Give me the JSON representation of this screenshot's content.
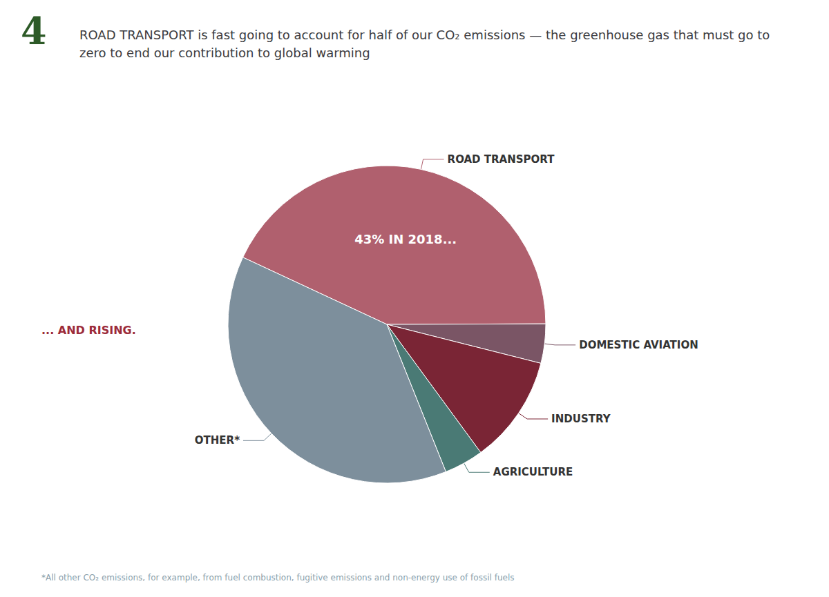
{
  "chart_data": {
    "type": "pie",
    "title": "ROAD TRANSPORT is fast going to account for half of our CO₂ emissions — the greenhouse gas that must go to zero to end our contribution to global warming",
    "categories": [
      "ROAD TRANSPORT",
      "DOMESTIC AVIATION",
      "INDUSTRY",
      "AGRICULTURE",
      "OTHER*"
    ],
    "values": [
      43,
      4,
      11,
      4,
      38
    ],
    "colors": [
      "#b0606e",
      "#7a5565",
      "#7a2535",
      "#4a7a75",
      "#7d8f9c"
    ],
    "annotations": [
      {
        "text": "4",
        "color": "#2d5a27"
      },
      {
        "text": "43% IN 2018...",
        "color": "#ffffff"
      },
      {
        "text": "... AND RISING.",
        "color": "#9c2b3a"
      },
      {
        "text": "*All other CO₂ emissions, for example, from fuel combustion, fugitive emissions and non-energy use of fossil fuels",
        "color": "#8a9fac"
      }
    ]
  }
}
